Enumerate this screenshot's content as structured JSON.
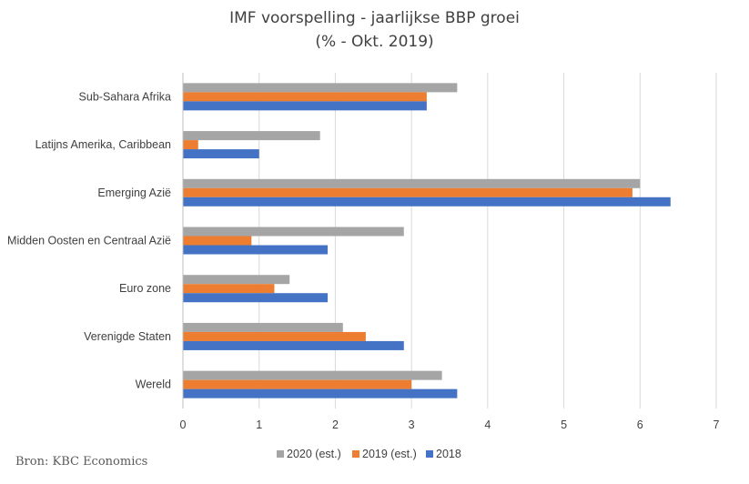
{
  "title_line1": "IMF voorspelling - jaarlijkse BBP groei",
  "title_line2": "(% - Okt. 2019)",
  "source": "Bron: KBC Economics",
  "chart_data": {
    "type": "bar",
    "orientation": "horizontal",
    "categories": [
      "Sub-Sahara Afrika",
      "Latijns Amerika, Caribbean",
      "Emerging Azië",
      "Midden Oosten en Centraal Azië",
      "Euro zone",
      "Verenigde Staten",
      "Wereld"
    ],
    "series": [
      {
        "name": "2020 (est.)",
        "color": "#A5A5A5",
        "values": [
          3.6,
          1.8,
          6.0,
          2.9,
          1.4,
          2.1,
          3.4
        ]
      },
      {
        "name": "2019 (est.)",
        "color": "#ED7D31",
        "values": [
          3.2,
          0.2,
          5.9,
          0.9,
          1.2,
          2.4,
          3.0
        ]
      },
      {
        "name": "2018",
        "color": "#4472C4",
        "values": [
          3.2,
          1.0,
          6.4,
          1.9,
          1.9,
          2.9,
          3.6
        ]
      }
    ],
    "xlim": [
      0,
      7
    ],
    "xticks": [
      "0",
      "1",
      "2",
      "3",
      "4",
      "5",
      "6",
      "7"
    ],
    "grid": true,
    "legend_position": "bottom"
  }
}
